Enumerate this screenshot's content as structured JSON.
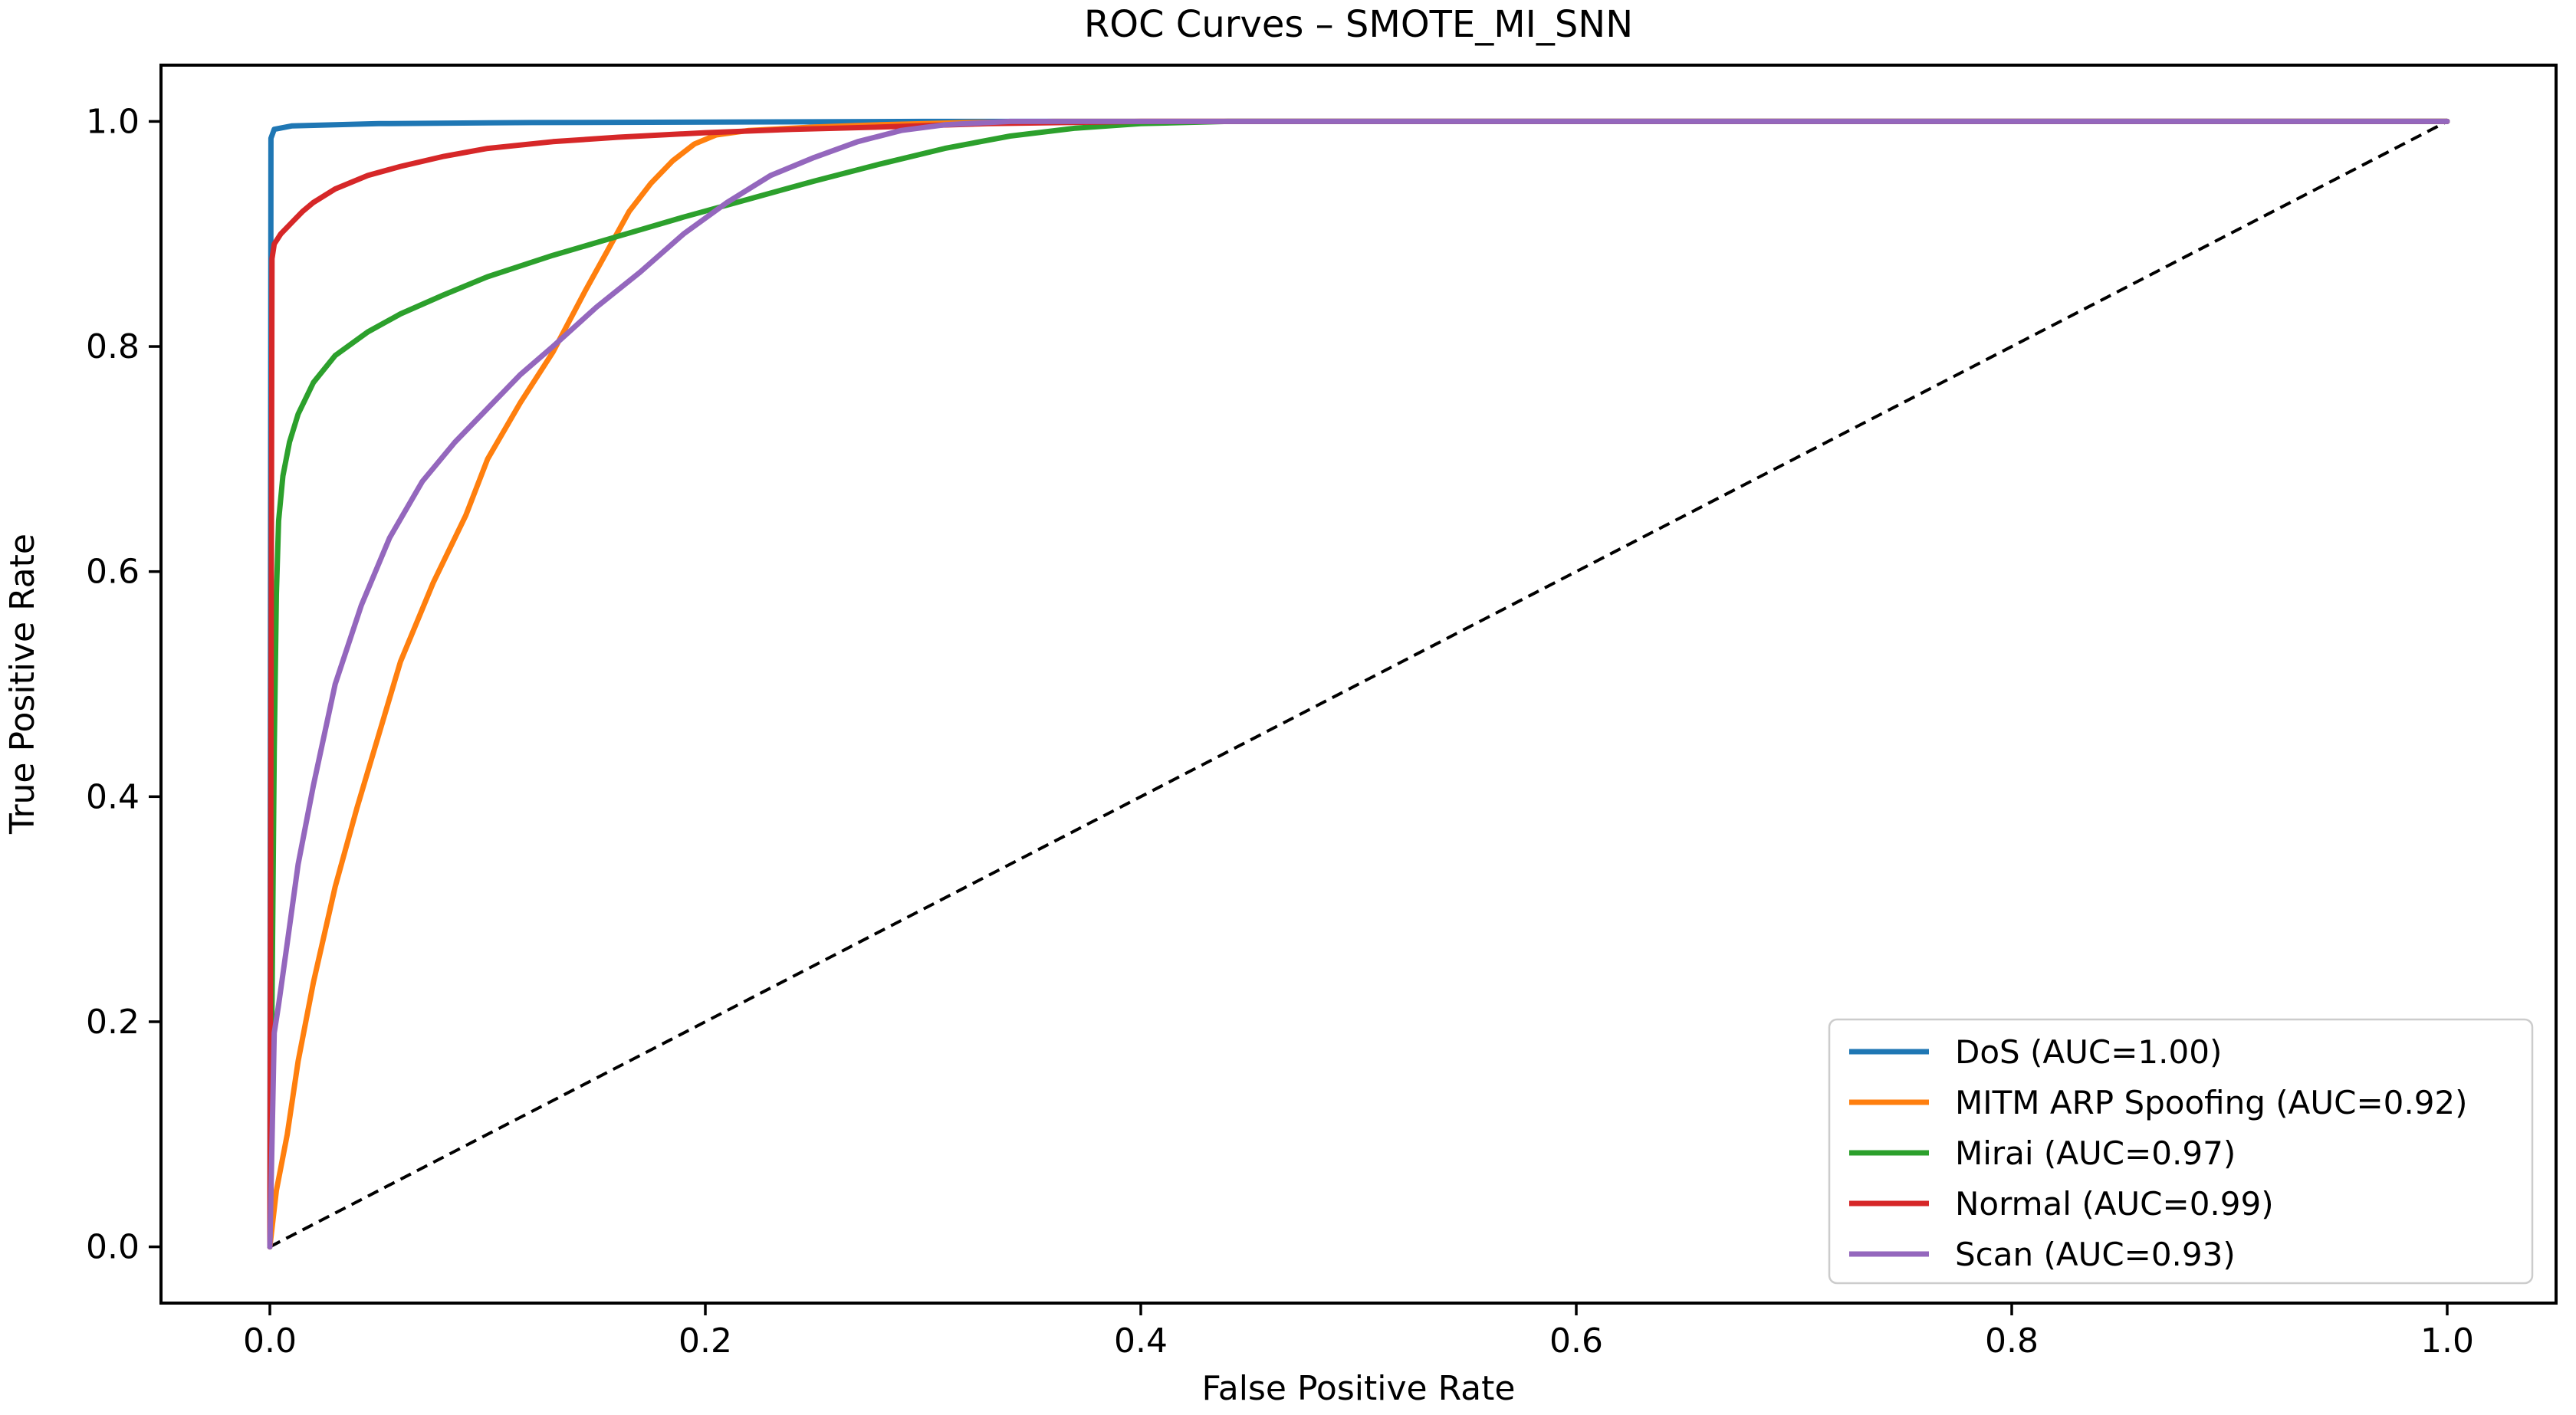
{
  "figure": {
    "title": "ROC Curves – SMOTE_MI_SNN",
    "xlabel": "False Positive Rate",
    "ylabel": "True Positive Rate"
  },
  "chart_data": {
    "type": "line",
    "title": "ROC Curves – SMOTE_MI_SNN",
    "xlabel": "False Positive Rate",
    "ylabel": "True Positive Rate",
    "xlim": [
      -0.05,
      1.05
    ],
    "ylim": [
      -0.05,
      1.05
    ],
    "xticks": [
      0.0,
      0.2,
      0.4,
      0.6,
      0.8,
      1.0
    ],
    "yticks": [
      0.0,
      0.2,
      0.4,
      0.6,
      0.8,
      1.0
    ],
    "grid": false,
    "legend_position": "lower right",
    "background": "#ffffff",
    "text_color": "#000000",
    "reference_line": {
      "name": "chance-diagonal",
      "color": "#000000",
      "style": "dashed",
      "points": [
        [
          0,
          0
        ],
        [
          1,
          1
        ]
      ]
    },
    "series": [
      {
        "name": "DoS",
        "label": "DoS (AUC=1.00)",
        "auc": "1.00",
        "color": "#1f77b4",
        "points": [
          [
            0,
            0
          ],
          [
            0.0005,
            0.985
          ],
          [
            0.002,
            0.993
          ],
          [
            0.01,
            0.996
          ],
          [
            0.05,
            0.998
          ],
          [
            0.12,
            0.999
          ],
          [
            0.3,
            1
          ],
          [
            1,
            1
          ]
        ]
      },
      {
        "name": "MITM ARP Spoofing",
        "label": "MITM ARP Spoofing (AUC=0.92)",
        "auc": "0.92",
        "color": "#ff7f0e",
        "points": [
          [
            0,
            0
          ],
          [
            0.003,
            0.05
          ],
          [
            0.008,
            0.1
          ],
          [
            0.013,
            0.165
          ],
          [
            0.02,
            0.235
          ],
          [
            0.03,
            0.32
          ],
          [
            0.04,
            0.39
          ],
          [
            0.05,
            0.455
          ],
          [
            0.06,
            0.52
          ],
          [
            0.075,
            0.59
          ],
          [
            0.09,
            0.65
          ],
          [
            0.1,
            0.7
          ],
          [
            0.115,
            0.75
          ],
          [
            0.13,
            0.795
          ],
          [
            0.145,
            0.85
          ],
          [
            0.155,
            0.885
          ],
          [
            0.165,
            0.92
          ],
          [
            0.175,
            0.945
          ],
          [
            0.185,
            0.965
          ],
          [
            0.195,
            0.98
          ],
          [
            0.205,
            0.988
          ],
          [
            0.22,
            0.992
          ],
          [
            0.25,
            0.995
          ],
          [
            0.28,
            0.997
          ],
          [
            0.32,
            0.999
          ],
          [
            0.36,
            1
          ],
          [
            1,
            1
          ]
        ]
      },
      {
        "name": "Mirai",
        "label": "Mirai (AUC=0.97)",
        "auc": "0.97",
        "color": "#2ca02c",
        "points": [
          [
            0,
            0
          ],
          [
            0.002,
            0.44
          ],
          [
            0.003,
            0.58
          ],
          [
            0.004,
            0.645
          ],
          [
            0.006,
            0.685
          ],
          [
            0.009,
            0.715
          ],
          [
            0.013,
            0.74
          ],
          [
            0.02,
            0.768
          ],
          [
            0.03,
            0.792
          ],
          [
            0.045,
            0.813
          ],
          [
            0.06,
            0.829
          ],
          [
            0.08,
            0.846
          ],
          [
            0.1,
            0.862
          ],
          [
            0.13,
            0.881
          ],
          [
            0.16,
            0.898
          ],
          [
            0.19,
            0.915
          ],
          [
            0.22,
            0.931
          ],
          [
            0.25,
            0.947
          ],
          [
            0.28,
            0.962
          ],
          [
            0.31,
            0.976
          ],
          [
            0.34,
            0.987
          ],
          [
            0.37,
            0.994
          ],
          [
            0.4,
            0.998
          ],
          [
            0.44,
            1
          ],
          [
            1,
            1
          ]
        ]
      },
      {
        "name": "Normal",
        "label": "Normal (AUC=0.99)",
        "auc": "0.99",
        "color": "#d62728",
        "points": [
          [
            0,
            0
          ],
          [
            0.001,
            0.878
          ],
          [
            0.002,
            0.891
          ],
          [
            0.005,
            0.9
          ],
          [
            0.01,
            0.91
          ],
          [
            0.015,
            0.92
          ],
          [
            0.02,
            0.928
          ],
          [
            0.03,
            0.94
          ],
          [
            0.045,
            0.952
          ],
          [
            0.06,
            0.96
          ],
          [
            0.08,
            0.969
          ],
          [
            0.1,
            0.976
          ],
          [
            0.13,
            0.982
          ],
          [
            0.16,
            0.986
          ],
          [
            0.2,
            0.99
          ],
          [
            0.24,
            0.993
          ],
          [
            0.28,
            0.995
          ],
          [
            0.33,
            0.998
          ],
          [
            0.4,
            1
          ],
          [
            1,
            1
          ]
        ]
      },
      {
        "name": "Scan",
        "label": "Scan (AUC=0.93)",
        "auc": "0.93",
        "color": "#9467bd",
        "points": [
          [
            0,
            0
          ],
          [
            0.002,
            0.19
          ],
          [
            0.004,
            0.215
          ],
          [
            0.008,
            0.27
          ],
          [
            0.013,
            0.34
          ],
          [
            0.02,
            0.41
          ],
          [
            0.03,
            0.5
          ],
          [
            0.042,
            0.57
          ],
          [
            0.055,
            0.63
          ],
          [
            0.07,
            0.68
          ],
          [
            0.085,
            0.715
          ],
          [
            0.1,
            0.745
          ],
          [
            0.115,
            0.775
          ],
          [
            0.13,
            0.8
          ],
          [
            0.15,
            0.835
          ],
          [
            0.17,
            0.866
          ],
          [
            0.19,
            0.9
          ],
          [
            0.21,
            0.928
          ],
          [
            0.23,
            0.952
          ],
          [
            0.25,
            0.968
          ],
          [
            0.27,
            0.982
          ],
          [
            0.29,
            0.992
          ],
          [
            0.31,
            0.997
          ],
          [
            0.34,
            1
          ],
          [
            1,
            1
          ]
        ]
      }
    ]
  }
}
